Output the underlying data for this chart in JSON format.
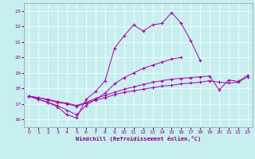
{
  "bg_color": "#c8eff0",
  "line_color": "#aa00aa",
  "xlabel": "Windchill (Refroidissement éolien,°C)",
  "xlim": [
    -0.5,
    23.5
  ],
  "ylim": [
    15.5,
    23.5
  ],
  "x_ticks": [
    0,
    1,
    2,
    3,
    4,
    5,
    6,
    7,
    8,
    9,
    10,
    11,
    12,
    13,
    14,
    15,
    16,
    17,
    18,
    19,
    20,
    21,
    22,
    23
  ],
  "y_ticks": [
    16,
    17,
    18,
    19,
    20,
    21,
    22,
    23
  ],
  "series": [
    [
      17.5,
      17.3,
      17.1,
      16.8,
      16.3,
      16.1,
      17.3,
      17.8,
      18.5,
      20.6,
      21.4,
      22.1,
      21.7,
      22.1,
      22.2,
      22.9,
      22.2,
      21.1,
      19.8,
      null,
      null,
      null,
      null,
      null
    ],
    [
      17.5,
      17.3,
      17.1,
      16.9,
      16.6,
      16.3,
      16.9,
      17.3,
      17.7,
      18.3,
      18.7,
      19.0,
      19.3,
      19.5,
      19.7,
      19.9,
      20.0,
      null,
      null,
      null,
      null,
      null,
      null,
      null
    ],
    [
      17.5,
      17.4,
      17.3,
      17.15,
      17.05,
      16.9,
      17.1,
      17.35,
      17.55,
      17.75,
      17.95,
      18.1,
      18.25,
      18.4,
      18.5,
      18.6,
      18.65,
      18.7,
      18.75,
      18.8,
      17.9,
      18.55,
      18.45,
      18.85
    ],
    [
      17.5,
      17.4,
      17.25,
      17.1,
      17.0,
      16.85,
      17.05,
      17.25,
      17.4,
      17.6,
      17.75,
      17.85,
      17.95,
      18.05,
      18.15,
      18.2,
      18.3,
      18.35,
      18.4,
      18.5,
      18.4,
      18.35,
      18.4,
      18.75
    ]
  ]
}
